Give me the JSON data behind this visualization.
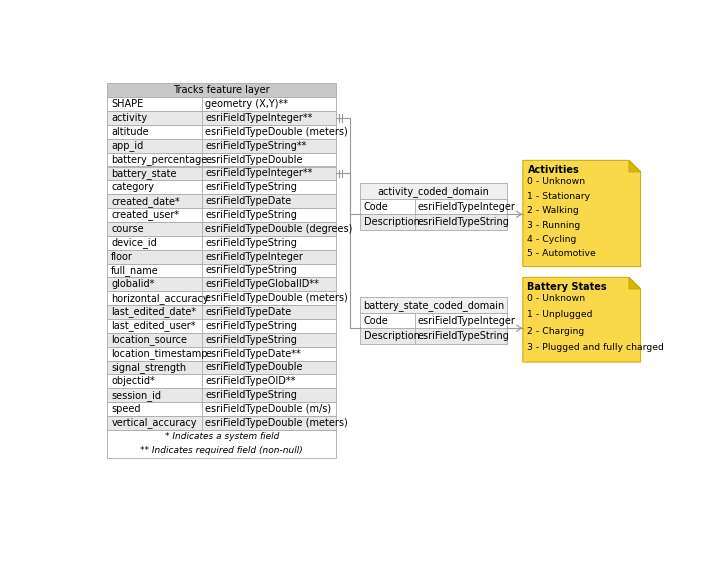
{
  "main_table_title": "Tracks feature layer",
  "main_table_rows": [
    [
      "SHAPE",
      "geometry (X,Y)**"
    ],
    [
      "activity",
      "esriFieldTypeInteger**"
    ],
    [
      "altitude",
      "esriFieldTypeDouble (meters)"
    ],
    [
      "app_id",
      "esriFieldTypeString**"
    ],
    [
      "battery_percentage",
      "esriFieldTypeDouble"
    ],
    [
      "battery_state",
      "esriFieldTypeInteger**"
    ],
    [
      "category",
      "esriFieldTypeString"
    ],
    [
      "created_date*",
      "esriFieldTypeDate"
    ],
    [
      "created_user*",
      "esriFieldTypeString"
    ],
    [
      "course",
      "esriFieldTypeDouble (degrees)"
    ],
    [
      "device_id",
      "esriFieldTypeString"
    ],
    [
      "floor",
      "esriFieldTypeInteger"
    ],
    [
      "full_name",
      "esriFieldTypeString"
    ],
    [
      "globalid*",
      "esriFieldTypeGlobalID**"
    ],
    [
      "horizontal_accuracy",
      "esriFieldTypeDouble (meters)"
    ],
    [
      "last_edited_date*",
      "esriFieldTypeDate"
    ],
    [
      "last_edited_user*",
      "esriFieldTypeString"
    ],
    [
      "location_source",
      "esriFieldTypeString"
    ],
    [
      "location_timestamp",
      "esriFieldTypeDate**"
    ],
    [
      "signal_strength",
      "esriFieldTypeDouble"
    ],
    [
      "objectid*",
      "esriFieldTypeOID**"
    ],
    [
      "session_id",
      "esriFieldTypeString"
    ],
    [
      "speed",
      "esriFieldTypeDouble (m/s)"
    ],
    [
      "vertical_accuracy",
      "esriFieldTypeDouble (meters)"
    ]
  ],
  "main_table_footer": [
    "* Indicates a system field",
    "** Indicates required field (non-null)"
  ],
  "activity_domain_title": "activity_coded_domain",
  "activity_domain_rows": [
    [
      "Code",
      "esriFieldTypeInteger"
    ],
    [
      "Description",
      "esriFieldTypeString"
    ]
  ],
  "battery_domain_title": "battery_state_coded_domain",
  "battery_domain_rows": [
    [
      "Code",
      "esriFieldTypeInteger"
    ],
    [
      "Description",
      "esriFieldTypeString"
    ]
  ],
  "activities_note_title": "Activities",
  "activities_note_lines": [
    "0 - Unknown",
    "1 - Stationary",
    "2 - Walking",
    "3 - Running",
    "4 - Cycling",
    "5 - Automotive"
  ],
  "battery_note_title": "Battery States",
  "battery_note_lines": [
    "0 - Unknown",
    "1 - Unplugged",
    "2 - Charging",
    "3 - Plugged and fully charged"
  ],
  "header_bg": "#c8c8c8",
  "row_bg_even": "#ffffff",
  "row_bg_odd": "#e8e8e8",
  "note_bg": "#f9d949",
  "border_color": "#aaaaaa",
  "font_size": 7.0,
  "title_font_size": 7.5
}
